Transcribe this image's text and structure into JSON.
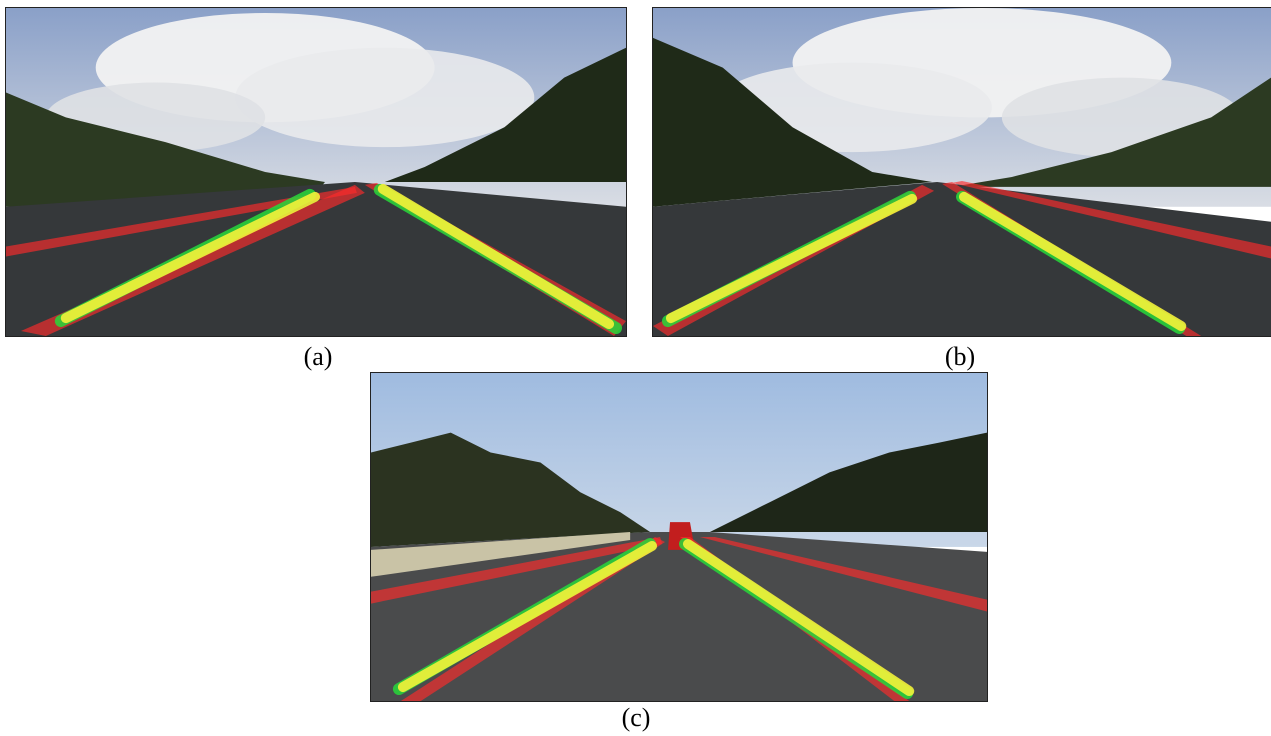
{
  "figure": {
    "captions": {
      "a": "(a)",
      "b": "(b)",
      "c": "(c)"
    },
    "legend_colors": {
      "ground_truth_lane": "#ff2b2b",
      "predicted_lane": "#f4f23a",
      "secondary_prediction": "#27d93a",
      "road": "#3a3c3f",
      "sky": "#c9d4e2"
    }
  }
}
